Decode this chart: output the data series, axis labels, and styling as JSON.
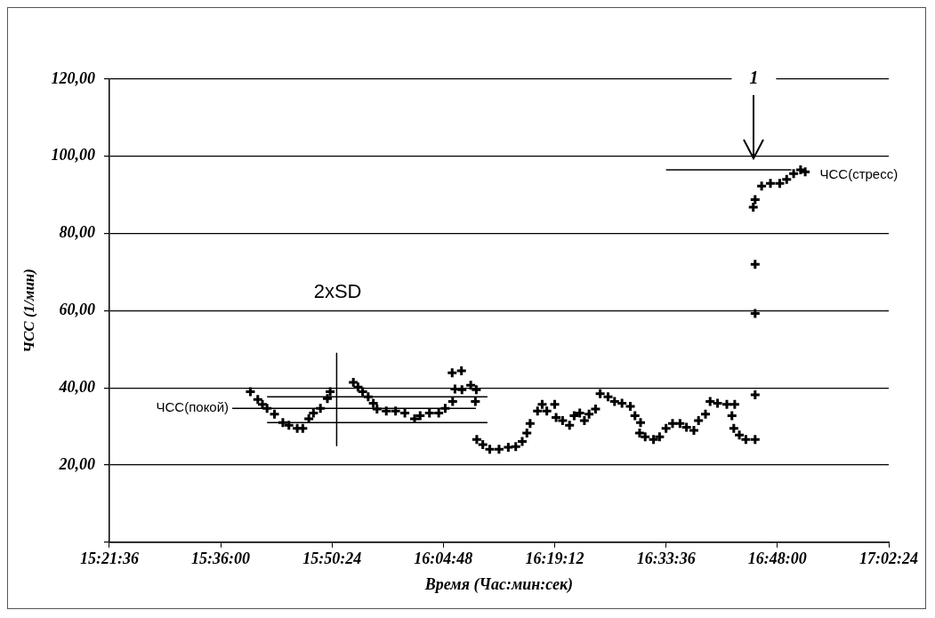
{
  "chart_data": {
    "type": "scatter",
    "xlabel": "Время (Час:мин:сек)",
    "ylabel": "ЧСС (1/мин)",
    "xlim": [
      15.36,
      17.04
    ],
    "xticks": [
      {
        "value": 15.36,
        "label": "15:21:36"
      },
      {
        "value": 15.6,
        "label": "15:36:00"
      },
      {
        "value": 15.84,
        "label": "15:50:24"
      },
      {
        "value": 16.08,
        "label": "16:04:48"
      },
      {
        "value": 16.32,
        "label": "16:19:12"
      },
      {
        "value": 16.56,
        "label": "16:33:36"
      },
      {
        "value": 16.8,
        "label": "16:48:00"
      },
      {
        "value": 17.04,
        "label": "17:02:24"
      }
    ],
    "ylim": [
      0,
      120
    ],
    "yticks": [
      {
        "value": 0,
        "label": null
      },
      {
        "value": 20,
        "label": "20,00"
      },
      {
        "value": 40,
        "label": "40,00"
      },
      {
        "value": 60,
        "label": "60,00"
      },
      {
        "value": 80,
        "label": "80,00"
      },
      {
        "value": 100,
        "label": "100,00"
      },
      {
        "value": 120,
        "label": "120,00"
      }
    ],
    "grid": "y",
    "legend": false,
    "marker": "cross",
    "annotations": [
      "1",
      "2xSD"
    ],
    "series": [
      {
        "color": "#000000",
        "x": [
          15.664,
          15.68,
          15.69,
          15.7,
          15.716,
          15.734,
          15.747,
          15.765,
          15.777,
          15.79,
          15.8,
          15.815,
          15.83,
          15.836,
          15.886,
          15.896,
          15.906,
          15.918,
          15.929,
          15.937,
          15.957,
          15.977,
          15.997,
          16.018,
          16.03,
          16.05,
          16.07,
          16.084,
          16.099,
          16.1,
          16.105,
          16.119,
          16.12,
          16.139,
          16.149,
          16.151,
          16.152,
          16.165,
          16.18,
          16.2,
          16.22,
          16.236,
          16.25,
          16.26,
          16.267,
          16.283,
          16.293,
          16.303,
          16.32,
          16.323,
          16.337,
          16.352,
          16.362,
          16.374,
          16.384,
          16.394,
          16.408,
          16.418,
          16.435,
          16.449,
          16.465,
          16.483,
          16.493,
          16.503,
          16.505,
          16.515,
          16.533,
          16.546,
          16.56,
          16.574,
          16.59,
          16.604,
          16.62,
          16.63,
          16.645,
          16.655,
          16.671,
          16.691,
          16.702,
          16.706,
          16.708,
          16.718,
          16.732,
          16.752,
          16.752,
          16.752,
          16.752,
          16.748,
          16.752,
          16.766,
          16.785,
          16.805,
          16.82,
          16.835,
          16.85,
          16.86
        ],
        "values": [
          39.0,
          37.0,
          35.7,
          34.7,
          33.2,
          31.0,
          30.3,
          29.5,
          29.5,
          32.0,
          33.5,
          34.7,
          37.2,
          39.0,
          41.4,
          40.2,
          39.0,
          37.7,
          36.0,
          34.5,
          34.0,
          34.0,
          33.5,
          32.0,
          32.8,
          33.5,
          33.5,
          34.7,
          43.9,
          36.5,
          39.7,
          44.4,
          39.5,
          40.7,
          36.5,
          39.5,
          26.6,
          25.3,
          24.1,
          24.1,
          24.6,
          24.8,
          26.1,
          28.3,
          30.8,
          34.0,
          35.7,
          34.0,
          35.7,
          32.3,
          31.5,
          30.3,
          32.8,
          33.5,
          31.5,
          33.2,
          34.5,
          38.5,
          37.7,
          36.5,
          36.0,
          35.2,
          32.8,
          28.3,
          31.0,
          27.3,
          26.6,
          27.3,
          29.5,
          30.8,
          30.8,
          29.8,
          29.0,
          31.5,
          33.2,
          36.5,
          36.0,
          35.7,
          32.8,
          29.5,
          35.7,
          27.8,
          26.6,
          26.6,
          38.2,
          59.3,
          72.0,
          86.8,
          88.8,
          92.3,
          93.0,
          93.0,
          94.0,
          95.5,
          96.5,
          96.0
        ]
      },
      {
        "type": "line",
        "name": "ЧСС(покой)",
        "color": "#000000",
        "marker": "none",
        "x": [
          15.625,
          16.15
        ],
        "values": [
          34.7,
          34.7
        ]
      },
      {
        "type": "line",
        "color": "#000000",
        "marker": "none",
        "x": [
          15.7,
          16.175
        ],
        "values": [
          37.7,
          37.7
        ]
      },
      {
        "type": "line",
        "color": "#000000",
        "marker": "none",
        "x": [
          15.7,
          16.175
        ],
        "values": [
          31.0,
          31.0
        ]
      },
      {
        "type": "line",
        "color": "#000000",
        "marker": "none",
        "x": [
          15.85,
          15.85
        ],
        "values": [
          49.0,
          25.0
        ]
      },
      {
        "type": "line",
        "name": "ЧСС(стресс)",
        "color": "#000000",
        "marker": "none",
        "x": [
          16.56,
          16.83
        ],
        "values": [
          96.5,
          96.5
        ]
      }
    ]
  }
}
